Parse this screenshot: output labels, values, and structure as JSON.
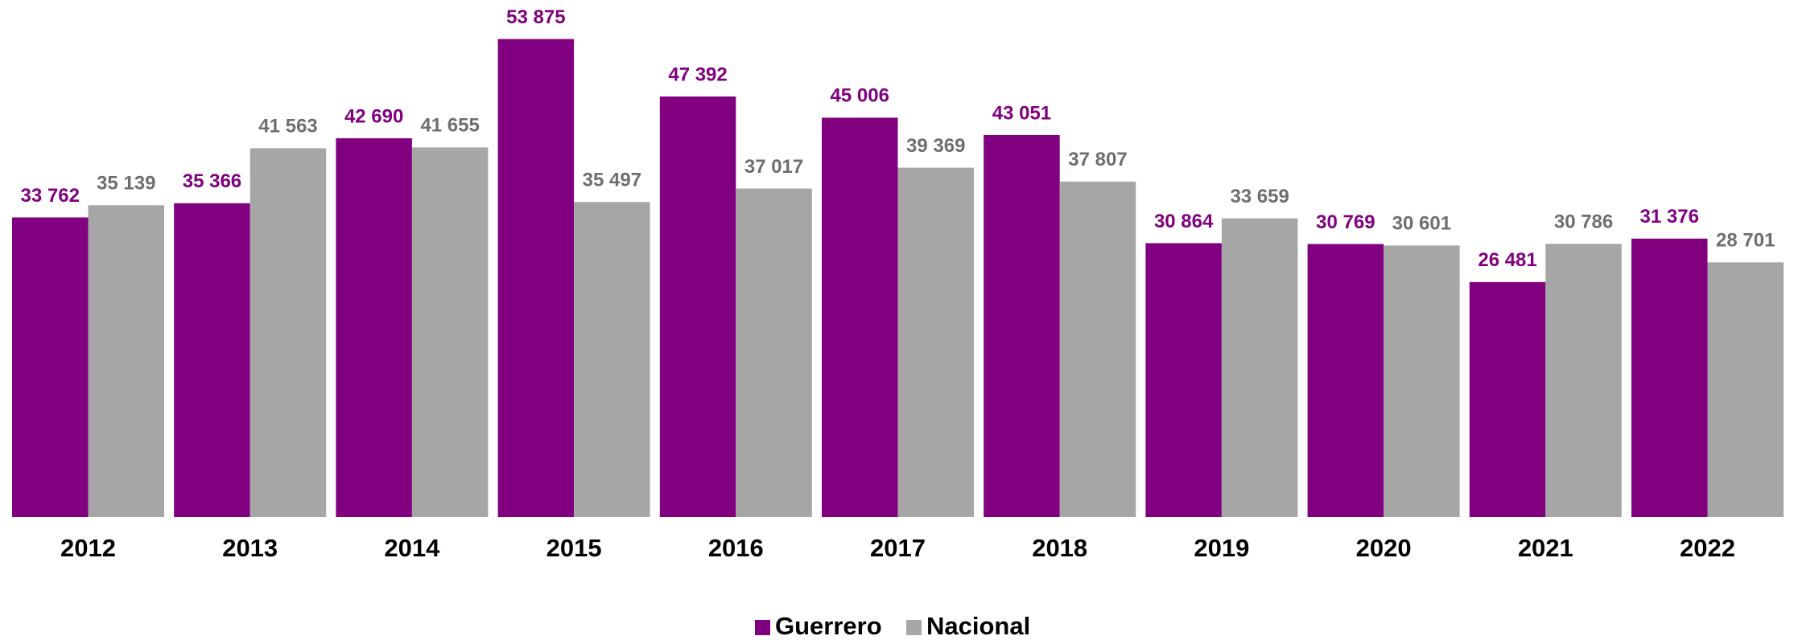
{
  "chart_data": {
    "type": "bar",
    "categories": [
      "2012",
      "2013",
      "2014",
      "2015",
      "2016",
      "2017",
      "2018",
      "2019",
      "2020",
      "2021",
      "2022"
    ],
    "series": [
      {
        "name": "Guerrero",
        "color": "#800080",
        "label_color": "#800080",
        "values": [
          33762,
          35366,
          42690,
          53875,
          47392,
          45006,
          43051,
          30864,
          30769,
          26481,
          31376
        ],
        "value_labels": [
          "33 762",
          "35 366",
          "42 690",
          "53 875",
          "47 392",
          "45 006",
          "43 051",
          "30 864",
          "30 769",
          "26 481",
          "31 376"
        ]
      },
      {
        "name": "Nacional",
        "color": "#a6a6a6",
        "label_color": "#6e6e6e",
        "values": [
          35139,
          41563,
          41655,
          35497,
          37017,
          39369,
          37807,
          33659,
          30601,
          30786,
          28701
        ],
        "value_labels": [
          "35 139",
          "41 563",
          "41 655",
          "35 497",
          "37 017",
          "39 369",
          "37 807",
          "33 659",
          "30 601",
          "30 786",
          "28 701"
        ]
      }
    ],
    "ylim": [
      0,
      58000
    ],
    "grid": false,
    "legend": "bottom"
  }
}
